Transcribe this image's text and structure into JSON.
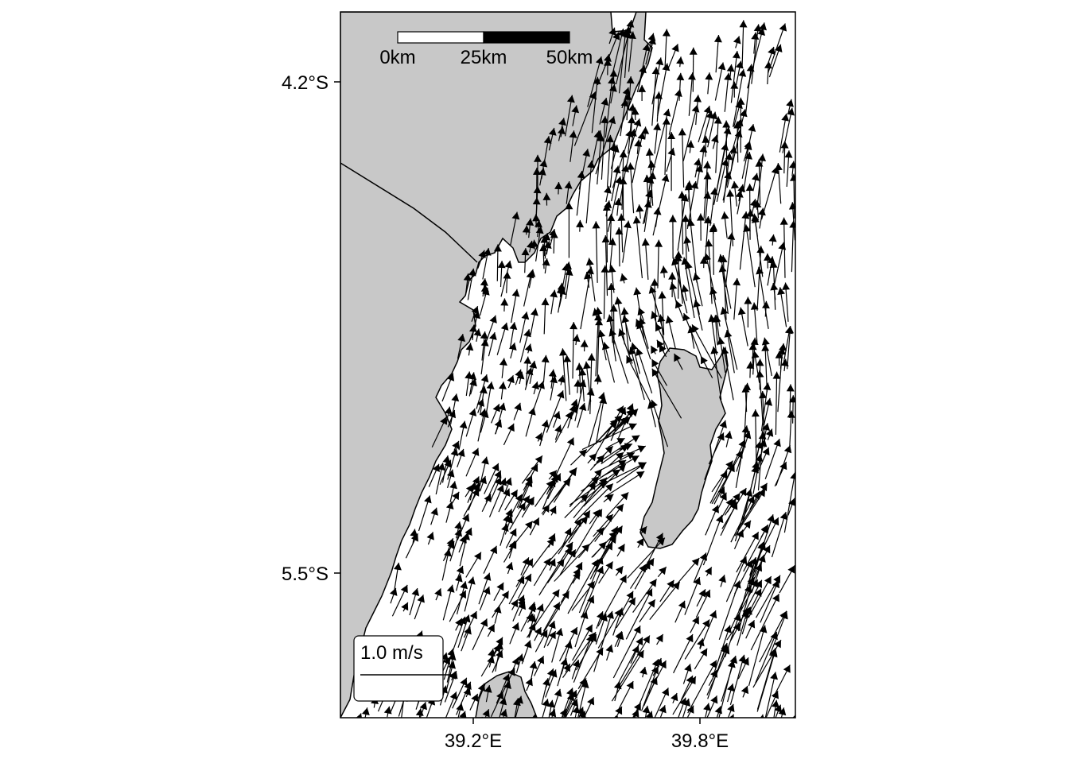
{
  "map": {
    "axes": {
      "y_ticks": [
        {
          "label": "4.2°S",
          "lat": -4.2
        },
        {
          "label": "5.5°S",
          "lat": -5.5
        }
      ],
      "x_ticks": [
        {
          "label": "39.2°E",
          "lon": 39.2
        },
        {
          "label": "39.8°E",
          "lon": 39.8
        }
      ],
      "lon_range": [
        38.85,
        40.05
      ],
      "lat_range": [
        -5.9,
        -4.02
      ]
    },
    "scale_bar": {
      "labels": [
        "0km",
        "25km",
        "50km"
      ],
      "segments": [
        {
          "from_km": 0,
          "to_km": 25,
          "fill": "white"
        },
        {
          "from_km": 25,
          "to_km": 50,
          "fill": "black"
        }
      ]
    },
    "vector_legend": {
      "label": "1.0 m/s",
      "speed": 1.0
    },
    "colors": {
      "land": "#c8c8c8",
      "sea": "#ffffff",
      "coastline": "#000000",
      "arrow": "#000000"
    },
    "current_field": {
      "description_free": true,
      "pattern": "northward coastal current with anticyclonic eddy around island",
      "dominant_direction_deg_from_north": 345,
      "typical_speed_m_s": 0.6
    }
  }
}
